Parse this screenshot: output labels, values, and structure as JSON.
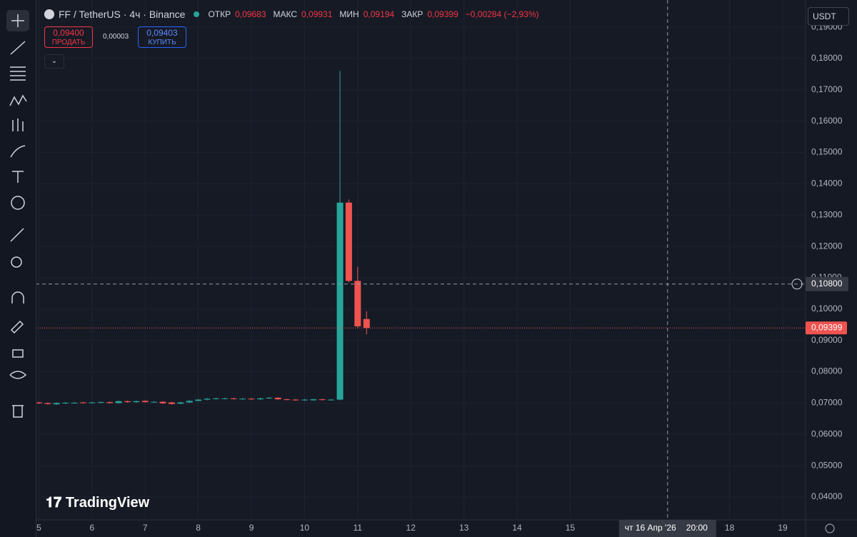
{
  "header": {
    "symbol": "FF / TetherUS · 4ч · Binance",
    "open_label": "ОТКР",
    "open": "0,09683",
    "high_label": "МАКС",
    "high": "0,09931",
    "low_label": "МИН",
    "low": "0,09194",
    "close_label": "ЗАКР",
    "close": "0,09399",
    "change": "−0,00284 (−2,93%)"
  },
  "trade": {
    "sell_price": "0,09400",
    "sell_label": "ПРОДАТЬ",
    "spread": "0,00003",
    "buy_price": "0,09403",
    "buy_label": "КУПИТЬ"
  },
  "currency": "USDT",
  "watermark": "TradingView",
  "chart_data": {
    "type": "candlestick",
    "up_color": "#26a69a",
    "down_color": "#ef5350",
    "grid": true,
    "x": [
      5.0,
      5.167,
      5.333,
      5.5,
      5.667,
      5.833,
      6.0,
      6.167,
      6.333,
      6.5,
      6.667,
      6.833,
      7.0,
      7.167,
      7.333,
      7.5,
      7.667,
      7.833,
      8.0,
      8.167,
      8.333,
      8.5,
      8.667,
      8.833,
      9.0,
      9.167,
      9.333,
      9.5,
      9.667,
      9.833,
      10.0,
      10.167,
      10.333,
      10.5,
      10.667,
      10.833,
      11.0,
      11.167
    ],
    "open": [
      0.0702,
      0.07,
      0.0696,
      0.0699,
      0.07,
      0.0702,
      0.07,
      0.0701,
      0.0703,
      0.07,
      0.0706,
      0.0703,
      0.0707,
      0.0703,
      0.0704,
      0.0702,
      0.0698,
      0.0702,
      0.0707,
      0.0711,
      0.0713,
      0.0714,
      0.0715,
      0.0713,
      0.0714,
      0.0712,
      0.0715,
      0.0717,
      0.0712,
      0.0711,
      0.0709,
      0.0709,
      0.0712,
      0.071,
      0.0711,
      0.134,
      0.109,
      0.09683
    ],
    "high": [
      0.0704,
      0.0702,
      0.0702,
      0.0703,
      0.0703,
      0.0704,
      0.0704,
      0.0705,
      0.0705,
      0.0708,
      0.0708,
      0.0708,
      0.0709,
      0.0706,
      0.0706,
      0.0704,
      0.0704,
      0.0709,
      0.0713,
      0.0716,
      0.0717,
      0.0717,
      0.0717,
      0.0716,
      0.0716,
      0.0717,
      0.0719,
      0.0719,
      0.0714,
      0.0713,
      0.0713,
      0.0714,
      0.0714,
      0.0713,
      0.176,
      0.135,
      0.1135,
      0.09931
    ],
    "low": [
      0.0697,
      0.0695,
      0.0694,
      0.0697,
      0.0698,
      0.0698,
      0.0698,
      0.0699,
      0.0698,
      0.0698,
      0.0701,
      0.0701,
      0.0701,
      0.0701,
      0.0697,
      0.0695,
      0.0696,
      0.07,
      0.0705,
      0.0709,
      0.0711,
      0.0712,
      0.0711,
      0.0711,
      0.071,
      0.071,
      0.0713,
      0.071,
      0.0709,
      0.0707,
      0.0707,
      0.0707,
      0.0708,
      0.0708,
      0.0709,
      0.1085,
      0.094,
      0.09194
    ],
    "close": [
      0.0699,
      0.0697,
      0.07,
      0.0701,
      0.0701,
      0.07,
      0.0702,
      0.0703,
      0.07,
      0.0706,
      0.0703,
      0.0706,
      0.0703,
      0.0704,
      0.0699,
      0.0697,
      0.0702,
      0.0707,
      0.0711,
      0.0714,
      0.0715,
      0.0715,
      0.0713,
      0.0714,
      0.0712,
      0.0715,
      0.0717,
      0.0712,
      0.0711,
      0.0709,
      0.0711,
      0.0712,
      0.071,
      0.0711,
      0.134,
      0.109,
      0.0945,
      0.09399
    ],
    "xlim": [
      4.94,
      19.43
    ],
    "xticks": [
      5,
      6,
      7,
      8,
      9,
      10,
      11,
      12,
      13,
      14,
      15,
      18,
      19
    ],
    "ylim": [
      0.0327,
      0.1987
    ],
    "yticks": [
      {
        "value": 0.19,
        "label": "0,19000"
      },
      {
        "value": 0.18,
        "label": "0,18000"
      },
      {
        "value": 0.17,
        "label": "0,17000"
      },
      {
        "value": 0.16,
        "label": "0,16000"
      },
      {
        "value": 0.15,
        "label": "0,15000"
      },
      {
        "value": 0.14,
        "label": "0,14000"
      },
      {
        "value": 0.13,
        "label": "0,13000"
      },
      {
        "value": 0.12,
        "label": "0,12000"
      },
      {
        "value": 0.11,
        "label": "0,11000"
      },
      {
        "value": 0.1,
        "label": "0,10000"
      },
      {
        "value": 0.09,
        "label": "0,09000"
      },
      {
        "value": 0.08,
        "label": "0,08000"
      },
      {
        "value": 0.07,
        "label": "0,07000"
      },
      {
        "value": 0.06,
        "label": "0,06000"
      },
      {
        "value": 0.05,
        "label": "0,05000"
      },
      {
        "value": 0.04,
        "label": "0,04000"
      }
    ],
    "last_price": {
      "value": 0.09399,
      "label": "0,09399"
    },
    "crosshair": {
      "x": 16.833,
      "price": {
        "value": 0.108,
        "label": "0,10800"
      },
      "date_label": "чт 16 Апр '26",
      "time_label": "20:00"
    }
  }
}
